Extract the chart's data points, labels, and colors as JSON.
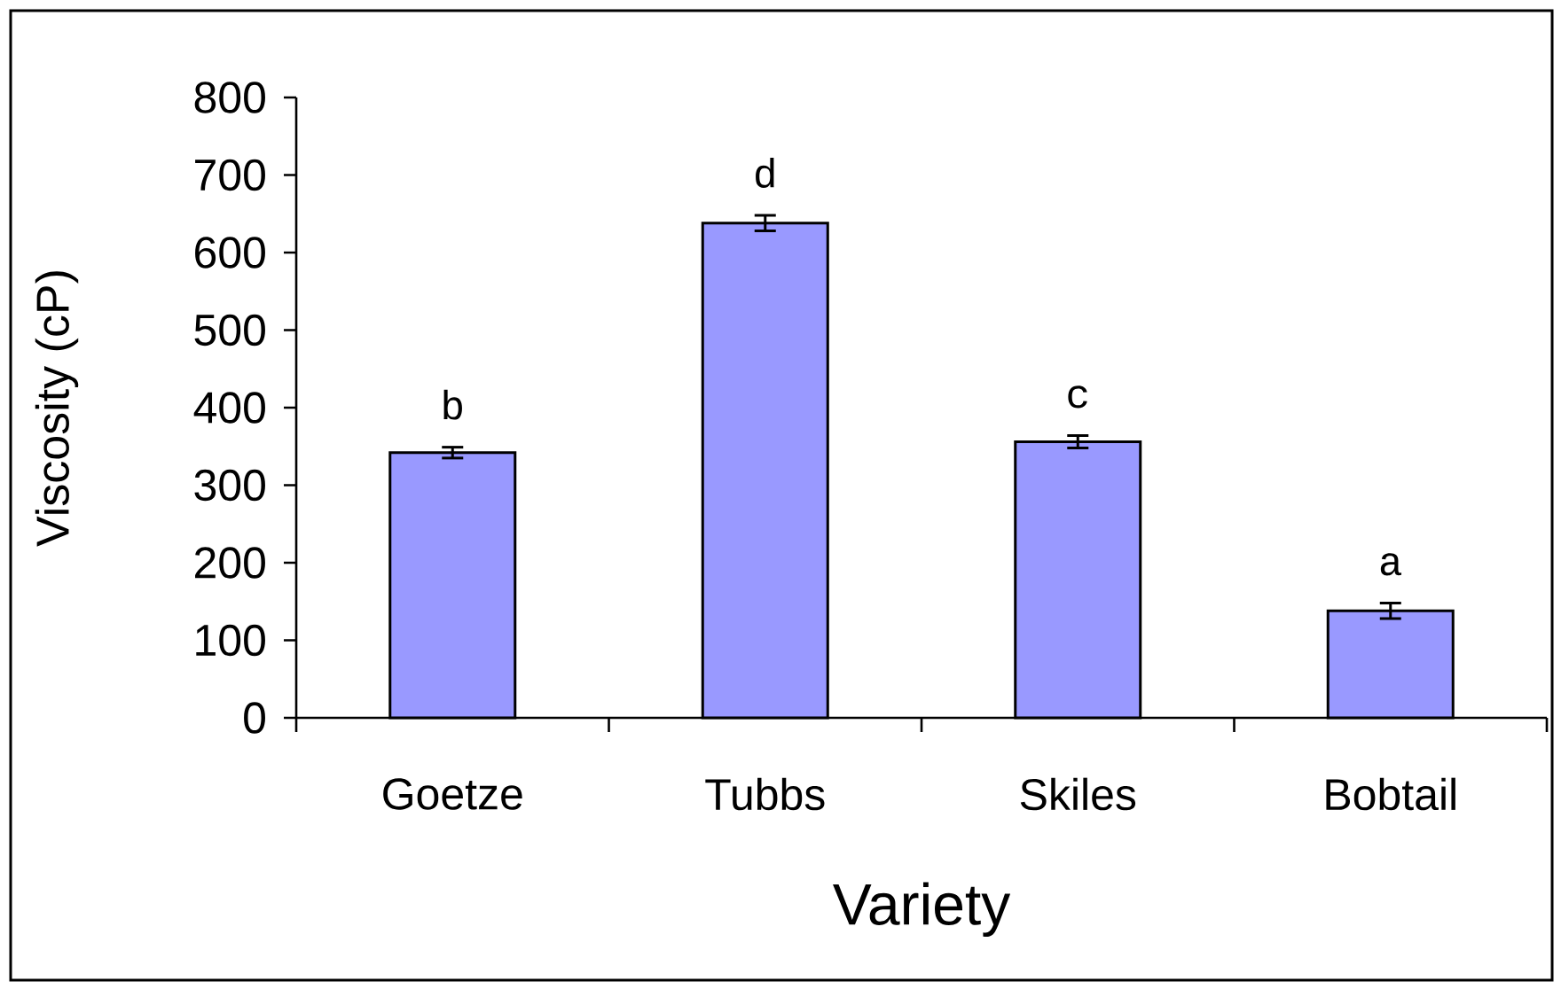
{
  "chart_data": {
    "type": "bar",
    "xlabel": "Variety",
    "ylabel": "Viscosity (cP)",
    "categories": [
      "Goetze",
      "Tubbs",
      "Skiles",
      "Bobtail"
    ],
    "values": [
      342,
      638,
      356,
      138
    ],
    "errors": [
      7,
      10,
      8,
      10
    ],
    "color": "#9999ff",
    "ylim": [
      0,
      800
    ],
    "yticks": [
      0,
      100,
      200,
      300,
      400,
      500,
      600,
      700,
      800
    ],
    "annotations": [
      "b",
      "d",
      "c",
      "a"
    ]
  }
}
